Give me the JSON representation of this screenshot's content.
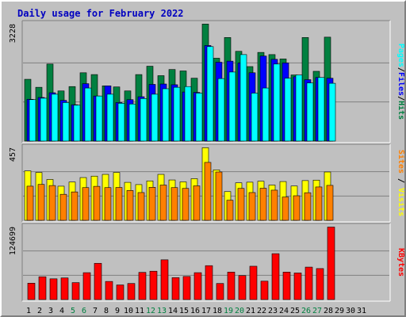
{
  "chart_data": [
    {
      "type": "bar",
      "title": "Daily usage for February 2022",
      "categories": [
        "1",
        "2",
        "3",
        "4",
        "5",
        "6",
        "7",
        "8",
        "9",
        "10",
        "11",
        "12",
        "13",
        "14",
        "15",
        "16",
        "17",
        "18",
        "19",
        "20",
        "21",
        "22",
        "23",
        "24",
        "25",
        "26",
        "27",
        "28",
        "29",
        "30",
        "31"
      ],
      "y_max_label": "3228",
      "ylim": [
        0,
        3228
      ],
      "axis_label_parts": [
        {
          "text": "Pages",
          "color": "#00ffff"
        },
        {
          "text": "/",
          "color": "#000000"
        },
        {
          "text": "Files",
          "color": "#0000ff"
        },
        {
          "text": "/",
          "color": "#000000"
        },
        {
          "text": "Hits",
          "color": "#008040"
        }
      ],
      "series": [
        {
          "name": "Hits",
          "color": "#008040",
          "values": [
            1700,
            1480,
            2120,
            1380,
            1500,
            1880,
            1830,
            1520,
            1490,
            1380,
            1830,
            2060,
            1800,
            1970,
            1930,
            1730,
            3220,
            2280,
            2850,
            2470,
            2050,
            2440,
            2380,
            2260,
            1820,
            2850,
            1920,
            2860,
            0,
            0,
            0
          ]
        },
        {
          "name": "Files",
          "color": "#0000ff",
          "values": [
            1150,
            1200,
            1330,
            1120,
            1000,
            1580,
            1240,
            1520,
            1060,
            1140,
            1220,
            1560,
            1570,
            1550,
            1350,
            1340,
            2630,
            2170,
            2200,
            2150,
            1880,
            2340,
            2250,
            2150,
            1770,
            1690,
            1750,
            1730,
            0,
            0,
            0
          ]
        },
        {
          "name": "Pages",
          "color": "#00ffff",
          "values": [
            1140,
            1180,
            1290,
            1060,
            990,
            1460,
            1240,
            1290,
            1040,
            1020,
            1170,
            1290,
            1440,
            1480,
            1500,
            1320,
            2600,
            1720,
            1900,
            2380,
            1320,
            1460,
            2120,
            1730,
            1820,
            1600,
            1750,
            1590,
            0,
            0,
            0
          ]
        }
      ]
    },
    {
      "type": "bar",
      "y_max_label": "457",
      "ylim": [
        0,
        457
      ],
      "axis_label_parts": [
        {
          "text": "Sites",
          "color": "#ff8000"
        },
        {
          "text": " / ",
          "color": "#000000"
        },
        {
          "text": "Visits",
          "color": "#ffff00"
        }
      ],
      "series": [
        {
          "name": "Visits",
          "color": "#ffff00",
          "values": [
            310,
            300,
            256,
            214,
            240,
            268,
            277,
            288,
            300,
            238,
            224,
            247,
            288,
            253,
            241,
            261,
            455,
            316,
            180,
            235,
            239,
            245,
            221,
            243,
            215,
            249,
            252,
            303,
            0,
            0,
            0
          ]
        },
        {
          "name": "Sites",
          "color": "#ff8000",
          "values": [
            214,
            225,
            218,
            163,
            178,
            205,
            213,
            205,
            206,
            187,
            174,
            207,
            221,
            205,
            200,
            216,
            363,
            303,
            126,
            200,
            174,
            201,
            189,
            146,
            154,
            173,
            209,
            219,
            0,
            0,
            0
          ]
        }
      ]
    },
    {
      "type": "bar",
      "y_max_label": "124699",
      "ylim": [
        0,
        124699
      ],
      "axis_label_parts": [
        {
          "text": "KBytes",
          "color": "#ff0000"
        }
      ],
      "series": [
        {
          "name": "KBytes",
          "color": "#ff0000",
          "values": [
            28000,
            39000,
            35500,
            37000,
            29000,
            46000,
            62000,
            31000,
            25000,
            27500,
            46500,
            48500,
            68000,
            37500,
            39500,
            46000,
            58000,
            27500,
            47000,
            41000,
            57000,
            31500,
            78500,
            47000,
            45500,
            55500,
            53000,
            124000,
            0,
            0,
            0
          ]
        }
      ]
    }
  ],
  "weekend_days": [
    "5",
    "6",
    "12",
    "13",
    "19",
    "20",
    "26",
    "27"
  ],
  "colors": {
    "panel": "#c0c0c0",
    "grid": "#808080",
    "weekday_label": "#000000",
    "weekend_label": "#008040"
  }
}
